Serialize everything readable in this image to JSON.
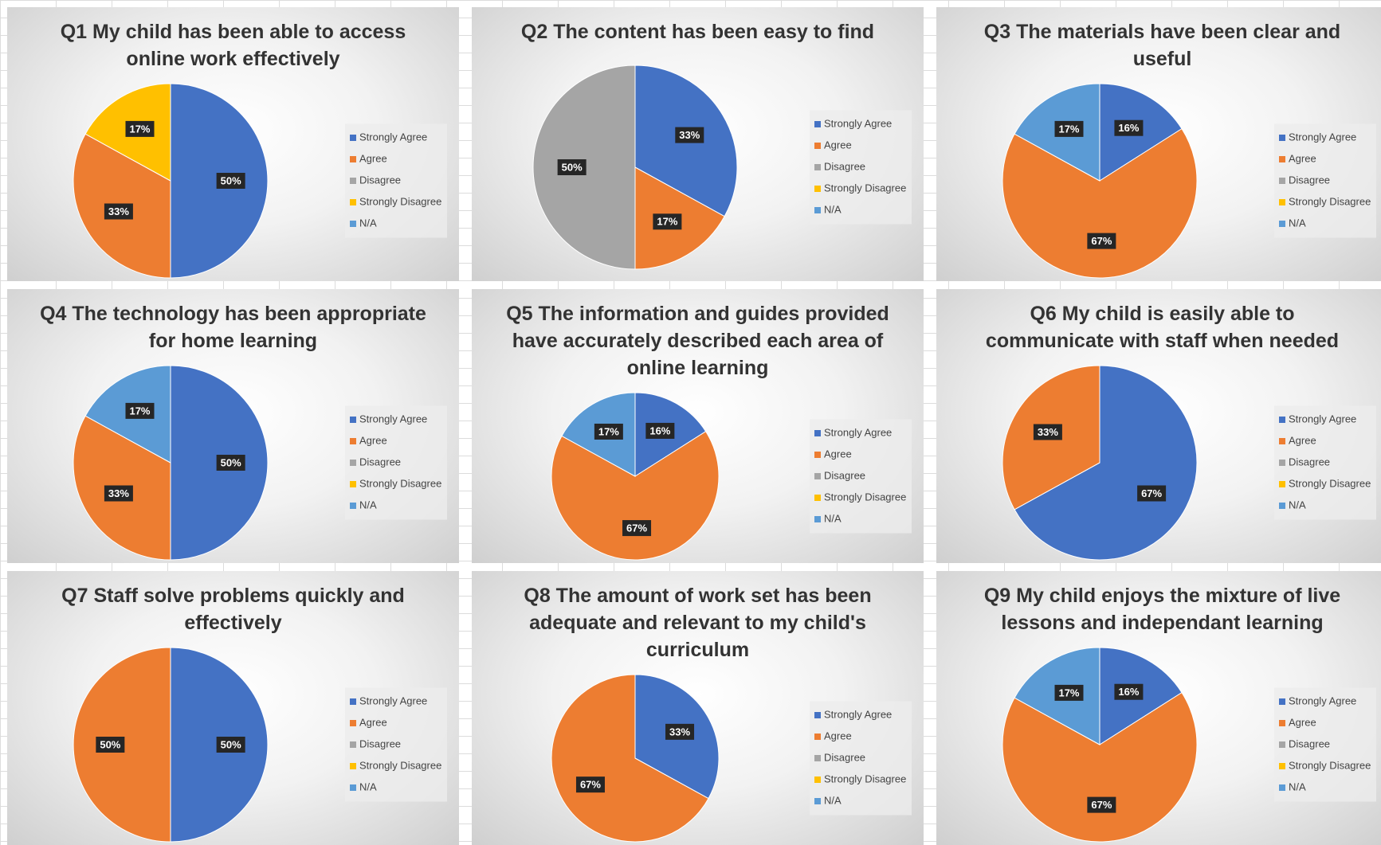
{
  "chart_data": [
    {
      "type": "pie",
      "title": "Q1 My child has been able to access online work effectively",
      "categories": [
        "Strongly Agree",
        "Agree",
        "Disagree",
        "Strongly Disagree",
        "N/A"
      ],
      "values": [
        50,
        33,
        0,
        17,
        0
      ],
      "value_labels": [
        "50%",
        "33%",
        null,
        "17%",
        null
      ],
      "colors": [
        "#4472c4",
        "#ed7d31",
        "#a5a5a5",
        "#ffc000",
        "#5b9bd5"
      ],
      "legend": "right"
    },
    {
      "type": "pie",
      "title": "Q4 The technology has been appropriate for home learning",
      "categories": [
        "Strongly Agree",
        "Agree",
        "Disagree",
        "Strongly Disagree",
        "N/A"
      ],
      "values": [
        50,
        33,
        0,
        0,
        17
      ],
      "value_labels": [
        "50%",
        "33%",
        null,
        null,
        "17%"
      ],
      "colors": [
        "#4472c4",
        "#ed7d31",
        "#a5a5a5",
        "#ffc000",
        "#5b9bd5"
      ],
      "legend": "right"
    },
    {
      "type": "pie",
      "title": "Q7 Staff solve problems quickly and effectively",
      "categories": [
        "Strongly Agree",
        "Agree",
        "Disagree",
        "Strongly Disagree",
        "N/A"
      ],
      "values": [
        50,
        50,
        0,
        0,
        0
      ],
      "value_labels": [
        "50%",
        "50%",
        null,
        null,
        null
      ],
      "colors": [
        "#4472c4",
        "#ed7d31",
        "#a5a5a5",
        "#ffc000",
        "#5b9bd5"
      ],
      "legend": "right"
    },
    {
      "type": "pie",
      "title": "Q2 The content has been easy to find",
      "categories": [
        "Strongly Agree",
        "Agree",
        "Disagree",
        "Strongly Disagree",
        "N/A"
      ],
      "values": [
        33,
        17,
        50,
        0,
        0
      ],
      "value_labels": [
        "33%",
        "17%",
        "50%",
        null,
        null
      ],
      "colors": [
        "#4472c4",
        "#ed7d31",
        "#a5a5a5",
        "#ffc000",
        "#5b9bd5"
      ],
      "legend": "right"
    },
    {
      "type": "pie",
      "title": "Q5  The information and guides provided have accurately described each area of online learning",
      "categories": [
        "Strongly Agree",
        "Agree",
        "Disagree",
        "Strongly Disagree",
        "N/A"
      ],
      "values": [
        16,
        67,
        0,
        0,
        17
      ],
      "value_labels": [
        "16%",
        "67%",
        null,
        null,
        "17%"
      ],
      "colors": [
        "#4472c4",
        "#ed7d31",
        "#a5a5a5",
        "#ffc000",
        "#5b9bd5"
      ],
      "legend": "right"
    },
    {
      "type": "pie",
      "title": "Q8 The amount of work set has been adequate and relevant to my child's curriculum",
      "categories": [
        "Strongly Agree",
        "Agree",
        "Disagree",
        "Strongly Disagree",
        "N/A"
      ],
      "values": [
        33,
        67,
        0,
        0,
        0
      ],
      "value_labels": [
        "33%",
        "67%",
        null,
        null,
        null
      ],
      "colors": [
        "#4472c4",
        "#ed7d31",
        "#a5a5a5",
        "#ffc000",
        "#5b9bd5"
      ],
      "legend": "right"
    },
    {
      "type": "pie",
      "title": "Q3 The materials have been clear and useful",
      "categories": [
        "Strongly Agree",
        "Agree",
        "Disagree",
        "Strongly Disagree",
        "N/A"
      ],
      "values": [
        16,
        67,
        0,
        0,
        17
      ],
      "value_labels": [
        "16%",
        "67%",
        null,
        null,
        "17%"
      ],
      "colors": [
        "#4472c4",
        "#ed7d31",
        "#a5a5a5",
        "#ffc000",
        "#5b9bd5"
      ],
      "legend": "right"
    },
    {
      "type": "pie",
      "title": "Q6 My child is easily able to communicate with staff when needed",
      "categories": [
        "Strongly Agree",
        "Agree",
        "Disagree",
        "Strongly Disagree",
        "N/A"
      ],
      "values": [
        67,
        33,
        0,
        0,
        0
      ],
      "value_labels": [
        "67%",
        "33%",
        null,
        null,
        null
      ],
      "colors": [
        "#4472c4",
        "#ed7d31",
        "#a5a5a5",
        "#ffc000",
        "#5b9bd5"
      ],
      "legend": "right"
    },
    {
      "type": "pie",
      "title": "Q9 My child enjoys the mixture of live lessons and independant learning",
      "categories": [
        "Strongly Agree",
        "Agree",
        "Disagree",
        "Strongly Disagree",
        "N/A"
      ],
      "values": [
        16,
        67,
        0,
        0,
        17
      ],
      "value_labels": [
        "16%",
        "67%",
        null,
        null,
        "17%"
      ],
      "colors": [
        "#4472c4",
        "#ed7d31",
        "#a5a5a5",
        "#ffc000",
        "#5b9bd5"
      ],
      "legend": "right"
    }
  ]
}
